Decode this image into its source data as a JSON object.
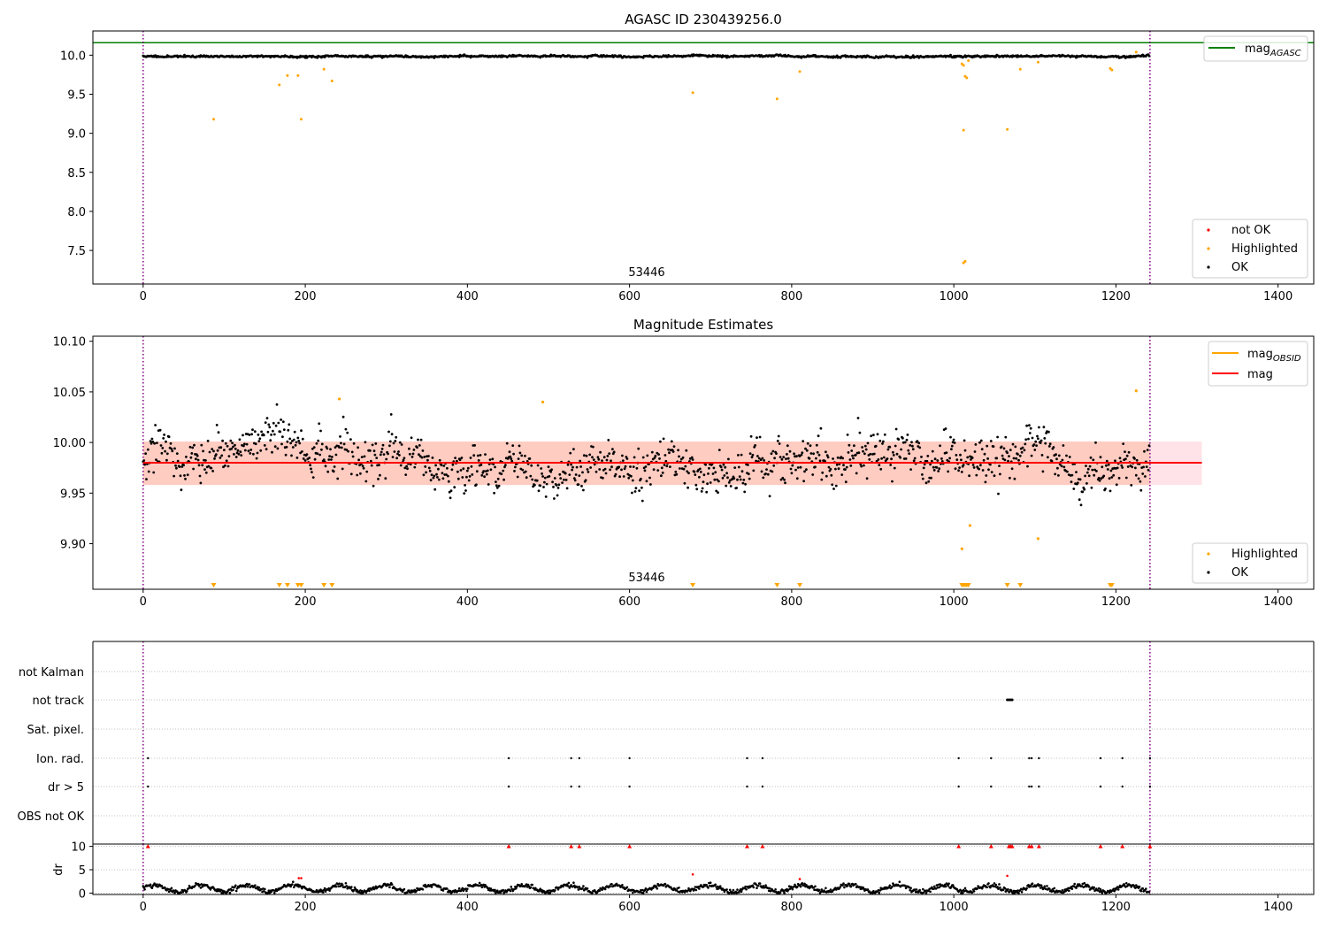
{
  "figure": {
    "background": "#ffffff"
  },
  "colors": {
    "ok": "#000000",
    "highlighted": "#ffa500",
    "not_ok": "#ff0000",
    "mag_agasc": "#008000",
    "mag_obsid": "#ffa500",
    "mag": "#ff0000",
    "obs_marker": "#800080",
    "band_outer": "#ffc0cb",
    "band_inner": "#ffa07a"
  },
  "chart_data": [
    {
      "type": "scatter",
      "title": "AGASC ID 230439256.0",
      "annotation": "53446",
      "xlim": [
        -62,
        1444
      ],
      "ylim": [
        7.07,
        10.31
      ],
      "x_ticks": [
        0,
        200,
        400,
        600,
        800,
        1000,
        1200,
        1400
      ],
      "x_tick_labels": [
        "0",
        "200",
        "400",
        "600",
        "800",
        "1000",
        "1200",
        "1400"
      ],
      "y_ticks": [
        7.5,
        8.0,
        8.5,
        9.0,
        9.5,
        10.0
      ],
      "y_tick_labels": [
        "7.5",
        "8.0",
        "8.5",
        "9.0",
        "9.5",
        "10.0"
      ],
      "vlines": [
        0,
        1242
      ],
      "hlines": [
        {
          "name": "mag",
          "name_sub": "AGASC",
          "y": 10.16
        }
      ],
      "ok_series": {
        "name": "OK",
        "n": 1242,
        "baseline": 9.985,
        "scatter": 0.012
      },
      "highlighted_points": {
        "name": "Highlighted",
        "x": [
          87,
          168,
          178,
          191,
          195,
          223,
          233,
          678,
          782,
          810,
          1010,
          1012,
          1014,
          1016,
          1018,
          1012,
          1014,
          1066,
          1082,
          1104,
          1193,
          1195,
          1225
        ],
        "y": [
          9.18,
          9.62,
          9.74,
          9.74,
          9.18,
          9.82,
          9.67,
          9.52,
          9.44,
          9.79,
          9.89,
          9.87,
          9.73,
          9.71,
          9.93,
          7.34,
          7.36,
          9.05,
          9.82,
          9.91,
          9.83,
          9.81,
          10.04
        ],
        "extra_x": [
          1012
        ],
        "extra_y": [
          9.04
        ]
      },
      "legend": {
        "placement": "lower-right",
        "entries": [
          "not OK",
          "Highlighted",
          "OK"
        ]
      },
      "line_legend": {
        "placement": "upper-right",
        "entries": [
          {
            "label": "mag",
            "sub": "AGASC"
          }
        ]
      }
    },
    {
      "type": "scatter",
      "title": "Magnitude Estimates",
      "annotation": "53446",
      "xlim": [
        -62,
        1444
      ],
      "ylim": [
        9.855,
        10.105
      ],
      "x_ticks": [
        0,
        200,
        400,
        600,
        800,
        1000,
        1200,
        1400
      ],
      "x_tick_labels": [
        "0",
        "200",
        "400",
        "600",
        "800",
        "1000",
        "1200",
        "1400"
      ],
      "y_ticks": [
        9.9,
        9.95,
        10.0,
        10.05,
        10.1
      ],
      "y_tick_labels": [
        "9.90",
        "9.95",
        "10.00",
        "10.05",
        "10.10"
      ],
      "vlines": [
        0,
        1242
      ],
      "mag_line": {
        "name": "mag",
        "y": 9.98,
        "x": [
          0,
          1306
        ]
      },
      "mag_obsid_line": {
        "name": "mag",
        "name_sub": "OBSID",
        "y": 9.98,
        "x": [
          0,
          1242
        ]
      },
      "band_outer": {
        "y0": 9.958,
        "y1": 10.001,
        "x": [
          0,
          1306
        ]
      },
      "band_inner": {
        "y0": 9.958,
        "y1": 10.001,
        "x": [
          0,
          1242
        ]
      },
      "ok_series": {
        "name": "OK",
        "n": 1242,
        "baseline": 9.978,
        "scatter": 0.018
      },
      "highlighted_points": {
        "name": "Highlighted",
        "x": [
          242,
          493,
          1010,
          1020,
          1104,
          1225
        ],
        "y": [
          10.043,
          10.04,
          9.895,
          9.918,
          9.905,
          10.051
        ]
      },
      "bottom_markers_x": [
        87,
        168,
        178,
        191,
        195,
        223,
        233,
        678,
        782,
        810,
        1010,
        1012,
        1014,
        1016,
        1018,
        1066,
        1082,
        1193,
        1195
      ],
      "legend": {
        "placement": "lower-right",
        "entries": [
          "Highlighted",
          "OK"
        ]
      },
      "line_legend": {
        "placement": "upper-right",
        "entries": [
          {
            "label": "mag",
            "sub": "OBSID"
          },
          {
            "label": "mag",
            "sub": ""
          }
        ]
      }
    },
    {
      "type": "scatter",
      "title": "",
      "categories": [
        "not Kalman",
        "not track",
        "Sat. pixel.",
        "Ion. rad.",
        "dr > 5",
        "OBS not OK"
      ],
      "xlim": [
        -62,
        1444
      ],
      "vlines": [
        0,
        1242
      ],
      "not_track_x": [
        1066,
        1068,
        1070,
        1072
      ],
      "ion_rad_x": [
        6,
        451,
        528,
        538,
        600,
        745,
        764,
        1006,
        1046,
        1093,
        1096,
        1105,
        1181,
        1208,
        1242
      ],
      "dr5_x": [
        6,
        451,
        528,
        538,
        600,
        745,
        764,
        1006,
        1046,
        1093,
        1096,
        1105,
        1181,
        1208,
        1242
      ]
    },
    {
      "type": "scatter",
      "title": "",
      "ylabel": "dr",
      "xlim": [
        -62,
        1444
      ],
      "ylim": [
        -0.3,
        10.5
      ],
      "x_ticks": [
        0,
        200,
        400,
        600,
        800,
        1000,
        1200,
        1400
      ],
      "x_tick_labels": [
        "0",
        "200",
        "400",
        "600",
        "800",
        "1000",
        "1200",
        "1400"
      ],
      "y_ticks": [
        0,
        5,
        10
      ],
      "y_tick_labels": [
        "0",
        "5",
        "10"
      ],
      "vlines": [
        0,
        1242
      ],
      "ok_series": {
        "name": "OK",
        "n": 1242,
        "baseline": 1.0,
        "scatter": 0.8
      },
      "red_points": {
        "x": [
          192,
          195,
          678,
          810,
          1066
        ],
        "y": [
          3.2,
          3.2,
          4.0,
          3.0,
          3.7
        ]
      },
      "clipped_points_x": [
        6,
        451,
        528,
        538,
        600,
        745,
        764,
        1006,
        1046,
        1068,
        1070,
        1072,
        1093,
        1096,
        1105,
        1181,
        1208,
        1242
      ]
    }
  ]
}
